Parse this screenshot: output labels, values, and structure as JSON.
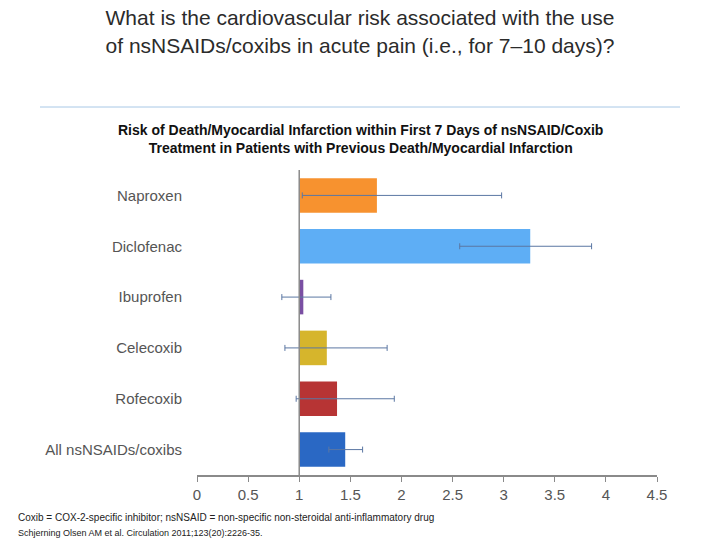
{
  "chart_data": {
    "type": "bar",
    "orientation": "horizontal",
    "title": [
      "What is the cardiovascular risk associated with the use",
      "of nsNSAIDs/coxibs in acute pain (i.e., for 7–10 days)?"
    ],
    "subtitle": [
      "Risk of Death/Myocardial Infarction within First 7 Days of nsNSAID/Coxib",
      "Treatment in Patients with Previous Death/Myocardial Infarction"
    ],
    "categories": [
      "Naproxen",
      "Diclofenac",
      "Ibuprofen",
      "Celecoxib",
      "Rofecoxib",
      "All nsNSAIDs/coxibs"
    ],
    "values": [
      1.76,
      3.26,
      1.04,
      1.27,
      1.37,
      1.45
    ],
    "ci_lower": [
      1.03,
      2.57,
      0.83,
      0.86,
      0.97,
      1.29
    ],
    "ci_upper": [
      2.98,
      3.86,
      1.31,
      1.86,
      1.93,
      1.62
    ],
    "baseline": 1,
    "colors": [
      "#f7922f",
      "#5eaef5",
      "#7a4fa3",
      "#d6b52c",
      "#b73434",
      "#2a68c4"
    ],
    "xlim": [
      0,
      4.5
    ],
    "xticks": [
      0,
      0.5,
      1,
      1.5,
      2,
      2.5,
      3,
      3.5,
      4,
      4.5
    ],
    "grid": false,
    "data_labels": false,
    "footnotes": [
      "Coxib = COX-2-specific inhibitor; nsNSAID = non-specific non-steroidal anti-inflammatory drug",
      "Schjerning Olsen AM et al. Circulation 2011;123(20):2226-35."
    ]
  }
}
